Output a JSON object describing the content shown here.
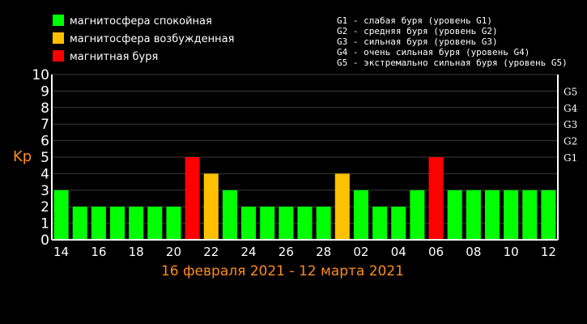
{
  "legend": [
    {
      "label": "магнитосфера спокойная",
      "color": "#00ff00"
    },
    {
      "label": "магнитосфера возбужденная",
      "color": "#ffc000"
    },
    {
      "label": "магнитная буря",
      "color": "#ff0000"
    }
  ],
  "storm_levels": [
    "G1 - слабая буря (уровень G1)",
    "G2 - средняя буря (уровень G2)",
    "G3 - сильная буря (уровень G3)",
    "G4 - очень сильная буря (уровень G4)",
    "G5 - экстремально сильная буря (уровень G5)"
  ],
  "chart_data": {
    "type": "bar",
    "ylabel": "Kp",
    "xlabel": "16 февраля 2021 - 12 марта 2021",
    "ylim": [
      0,
      10
    ],
    "yticks": [
      "0",
      "1",
      "2",
      "3",
      "4",
      "5",
      "6",
      "7",
      "8",
      "9",
      "10"
    ],
    "g_ticks": [
      {
        "label": "G1",
        "value": 5
      },
      {
        "label": "G2",
        "value": 6
      },
      {
        "label": "G3",
        "value": 7
      },
      {
        "label": "G4",
        "value": 8
      },
      {
        "label": "G5",
        "value": 9
      }
    ],
    "x_tick_labels": [
      "14",
      "16",
      "18",
      "20",
      "22",
      "24",
      "26",
      "28",
      "02",
      "04",
      "06",
      "08",
      "10",
      "12"
    ],
    "values": [
      3,
      2,
      2,
      2,
      2,
      2,
      2,
      5,
      4,
      3,
      2,
      2,
      2,
      2,
      2,
      4,
      3,
      2,
      2,
      3,
      5,
      3,
      3,
      3,
      3,
      3,
      3
    ],
    "colors": {
      "quiet": "#00ff00",
      "active": "#ffc000",
      "storm": "#ff0000"
    },
    "thresholds": {
      "active": 4,
      "storm": 5
    },
    "grid": true
  }
}
